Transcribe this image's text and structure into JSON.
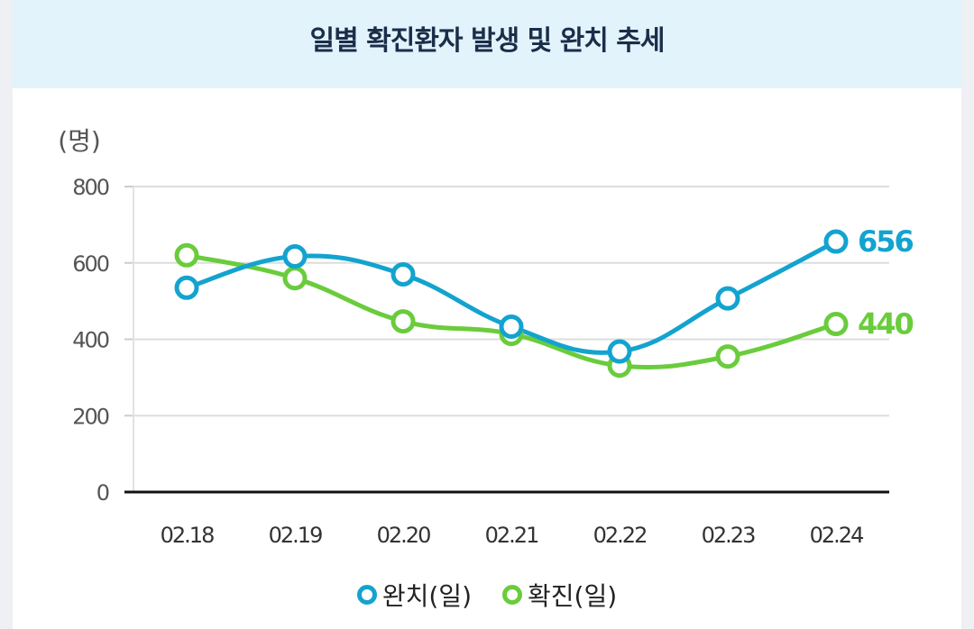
{
  "chart_data": {
    "type": "line",
    "title": "일별 확진환자 발생 및 완치 추세",
    "ylabel": "(명)",
    "xlabel": "",
    "ylim": [
      0,
      800
    ],
    "yticks": [
      0,
      200,
      400,
      600,
      800
    ],
    "categories": [
      "02.18",
      "02.19",
      "02.20",
      "02.21",
      "02.22",
      "02.23",
      "02.24"
    ],
    "series": [
      {
        "name": "완치(일)",
        "color": "#13a3cf",
        "values": [
          535,
          617,
          570,
          433,
          368,
          507,
          656
        ]
      },
      {
        "name": "확진(일)",
        "color": "#6acc3c",
        "values": [
          620,
          560,
          447,
          414,
          331,
          355,
          440
        ]
      }
    ],
    "end_labels": [
      "656",
      "440"
    ],
    "grid": true,
    "legend_position": "bottom"
  }
}
